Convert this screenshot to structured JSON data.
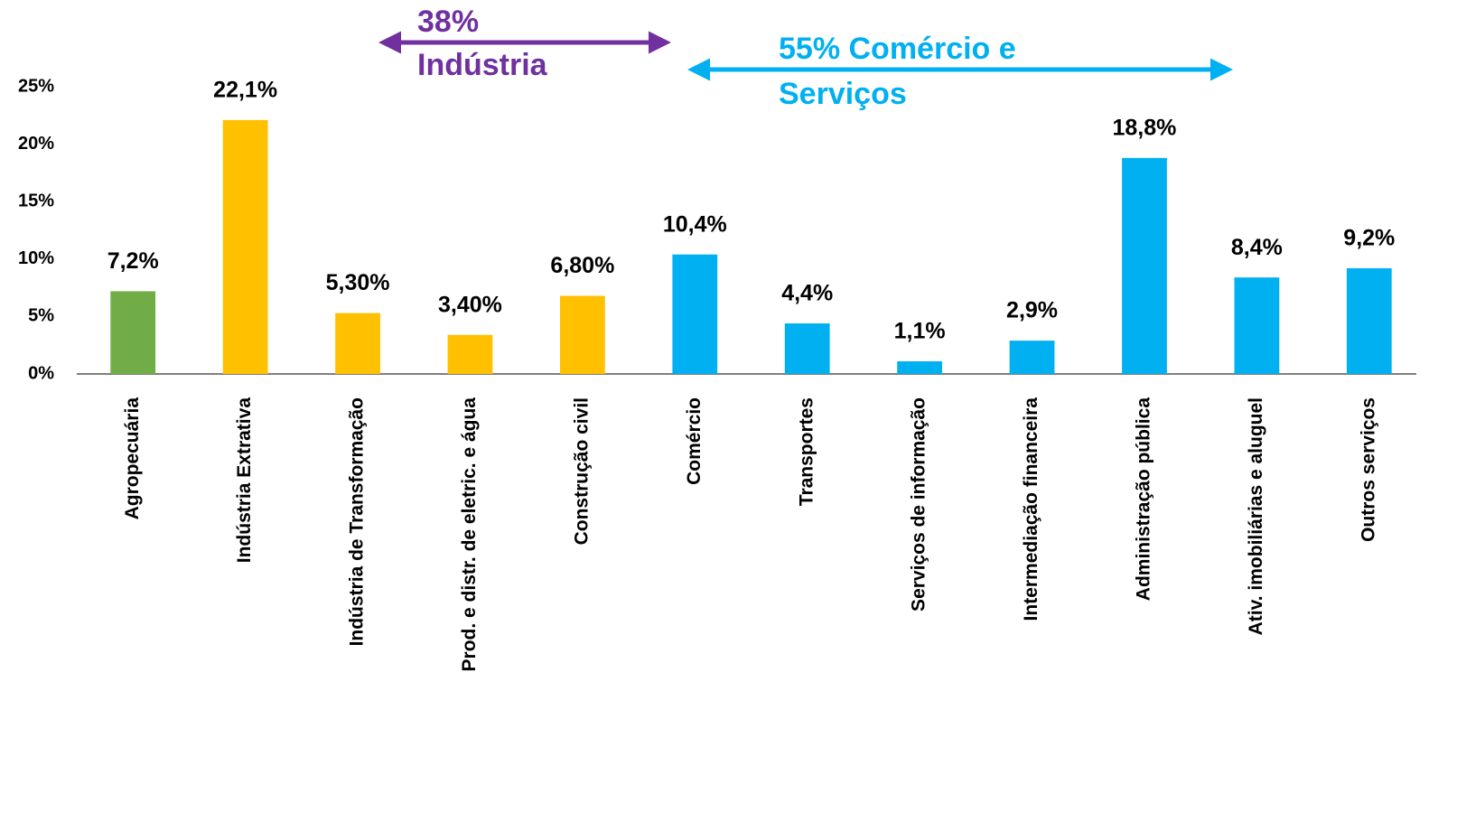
{
  "chart_data": {
    "type": "bar",
    "categories": [
      "Agropecuária",
      "Indústria Extrativa",
      "Indústria de Transformação",
      "Prod. e distr. de eletric. e água",
      "Construção civil",
      "Comércio",
      "Transportes",
      "Serviços de informação",
      "Intermediação financeira",
      "Administração pública",
      "Ativ. imobiliárias e aluguel",
      "Outros serviços"
    ],
    "values": [
      7.2,
      22.1,
      5.3,
      3.4,
      6.8,
      10.4,
      4.4,
      1.1,
      2.9,
      18.8,
      8.4,
      9.2
    ],
    "value_labels": [
      "7,2%",
      "22,1%",
      "5,30%",
      "3,40%",
      "6,80%",
      "10,4%",
      "4,4%",
      "1,1%",
      "2,9%",
      "18,8%",
      "8,4%",
      "9,2%"
    ],
    "colors": [
      "#70ad47",
      "#ffc000",
      "#ffc000",
      "#ffc000",
      "#ffc000",
      "#00b0f0",
      "#00b0f0",
      "#00b0f0",
      "#00b0f0",
      "#00b0f0",
      "#00b0f0",
      "#00b0f0"
    ],
    "ylim": [
      0,
      25
    ],
    "yticks": [
      {
        "value": 0,
        "label": "0%"
      },
      {
        "value": 5,
        "label": "5%"
      },
      {
        "value": 10,
        "label": "10%"
      },
      {
        "value": 15,
        "label": "15%"
      },
      {
        "value": 20,
        "label": "20%"
      },
      {
        "value": 25,
        "label": "25%"
      }
    ],
    "grid": false,
    "annotations": [
      {
        "lines": [
          "38%",
          "Indústria"
        ],
        "color": "#7030a0"
      },
      {
        "lines": [
          "55% Comércio e",
          "Serviços"
        ],
        "color": "#00b0f0"
      }
    ]
  }
}
